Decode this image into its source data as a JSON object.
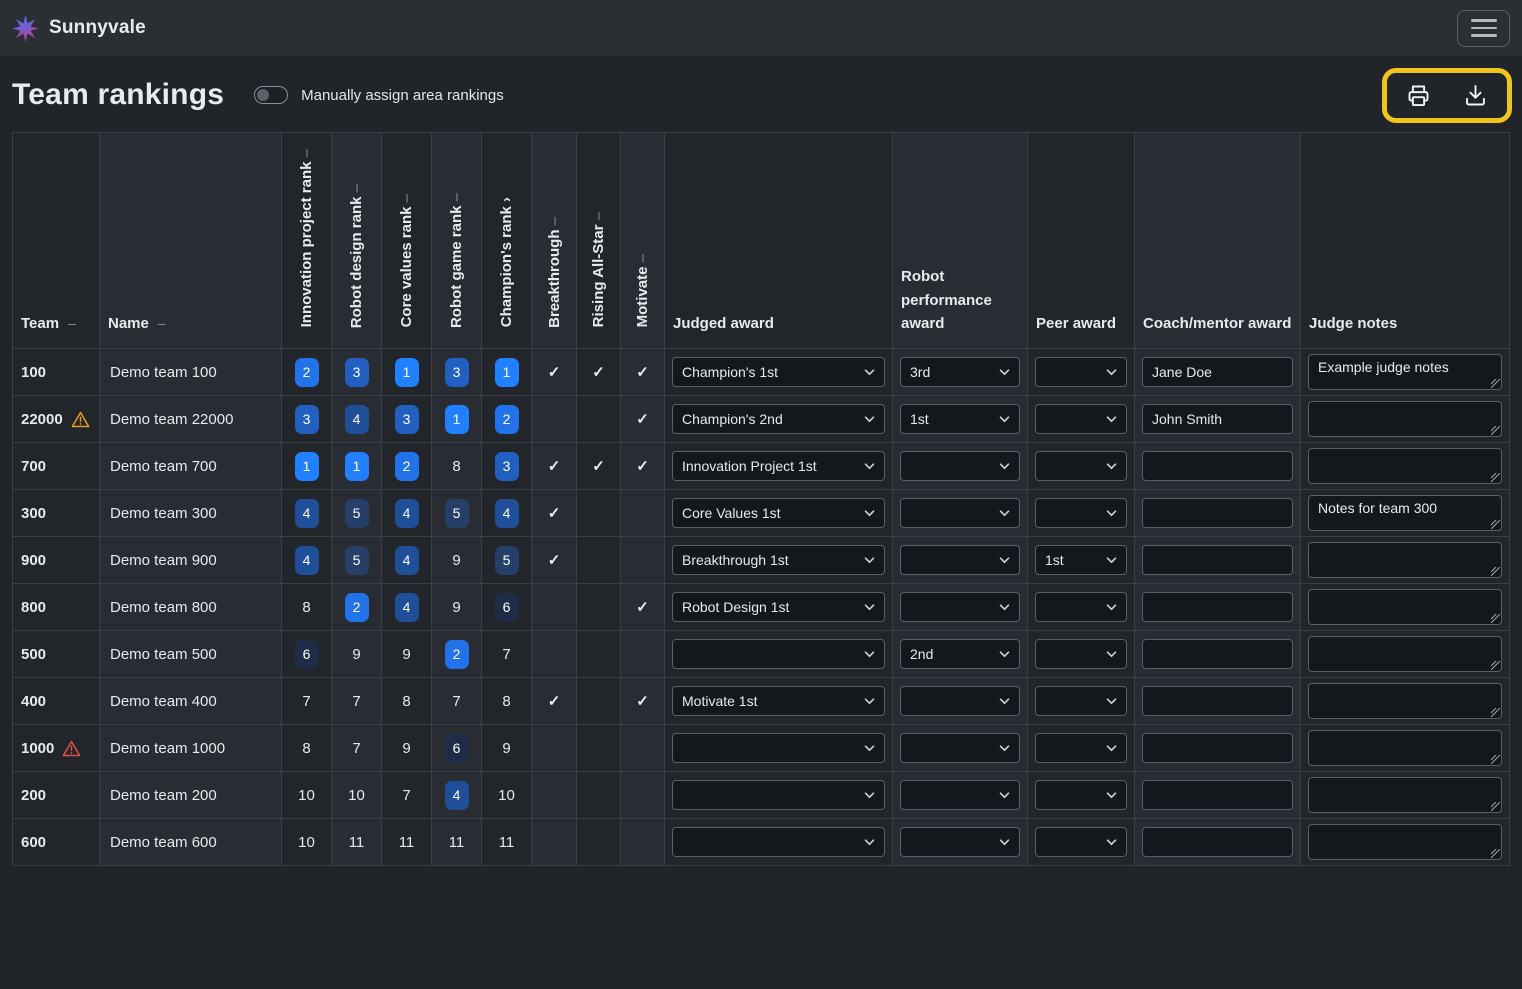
{
  "app": {
    "brand": "Sunnyvale"
  },
  "page": {
    "title": "Team rankings",
    "toggle_label": "Manually assign area rankings",
    "toggle_on": false
  },
  "toolbar": {
    "print_icon": "printer-icon",
    "download_icon": "download-icon",
    "menu_icon": "hamburger-icon",
    "logo_icon": "starburst-icon"
  },
  "icons": {
    "check": "✓",
    "sort_unsorted": "–",
    "sort_asc": "›",
    "select_caret": "chevron-down-icon",
    "warning": "warning-triangle-icon"
  },
  "colors": {
    "highlight": "#f0c419",
    "warning_amber": "#e9a11b",
    "warning_red": "#e05252",
    "rank_badge": {
      "1": "#2080ff",
      "2": "#2273e9",
      "3": "#2160c0",
      "4": "#204f9a",
      "5": "#263f69",
      "6": "#1e2c47"
    }
  },
  "table": {
    "columns": [
      {
        "id": "team",
        "label": "Team",
        "sort": "unsorted",
        "orientation": "horizontal"
      },
      {
        "id": "name",
        "label": "Name",
        "sort": "unsorted",
        "orientation": "horizontal"
      },
      {
        "id": "innovation_project_rank",
        "label": "Innovation project rank",
        "sort": "unsorted",
        "orientation": "vertical"
      },
      {
        "id": "robot_design_rank",
        "label": "Robot design rank",
        "sort": "unsorted",
        "orientation": "vertical"
      },
      {
        "id": "core_values_rank",
        "label": "Core values rank",
        "sort": "unsorted",
        "orientation": "vertical"
      },
      {
        "id": "robot_game_rank",
        "label": "Robot game rank",
        "sort": "unsorted",
        "orientation": "vertical"
      },
      {
        "id": "champions_rank",
        "label": "Champion's rank",
        "sort": "asc",
        "orientation": "vertical"
      },
      {
        "id": "breakthrough",
        "label": "Breakthrough",
        "sort": "unsorted",
        "orientation": "vertical"
      },
      {
        "id": "rising_all_star",
        "label": "Rising All-Star",
        "sort": "unsorted",
        "orientation": "vertical"
      },
      {
        "id": "motivate",
        "label": "Motivate",
        "sort": "unsorted",
        "orientation": "vertical"
      },
      {
        "id": "judged_award",
        "label": "Judged award",
        "sort": "none",
        "orientation": "horizontal"
      },
      {
        "id": "robot_performance_award",
        "label": "Robot performance award",
        "sort": "none",
        "orientation": "horizontal"
      },
      {
        "id": "peer_award",
        "label": "Peer award",
        "sort": "none",
        "orientation": "horizontal"
      },
      {
        "id": "coach_mentor_award",
        "label": "Coach/mentor award",
        "sort": "none",
        "orientation": "horizontal"
      },
      {
        "id": "judge_notes",
        "label": "Judge notes",
        "sort": "none",
        "orientation": "horizontal"
      }
    ],
    "rows": [
      {
        "team": "100",
        "warning": null,
        "name": "Demo team 100",
        "ranks": [
          2,
          3,
          1,
          3,
          1
        ],
        "breakthrough": true,
        "rising_all_star": true,
        "motivate": true,
        "judged_award": "Champion's 1st",
        "robot_performance_award": "3rd",
        "peer_award": "",
        "coach_mentor_award": "Jane Doe",
        "judge_notes": "Example judge notes"
      },
      {
        "team": "22000",
        "warning": "amber",
        "name": "Demo team 22000",
        "ranks": [
          3,
          4,
          3,
          1,
          2
        ],
        "breakthrough": false,
        "rising_all_star": false,
        "motivate": true,
        "judged_award": "Champion's 2nd",
        "robot_performance_award": "1st",
        "peer_award": "",
        "coach_mentor_award": "John Smith",
        "judge_notes": ""
      },
      {
        "team": "700",
        "warning": null,
        "name": "Demo team 700",
        "ranks": [
          1,
          1,
          2,
          8,
          3
        ],
        "breakthrough": true,
        "rising_all_star": true,
        "motivate": true,
        "judged_award": "Innovation Project 1st",
        "robot_performance_award": "",
        "peer_award": "",
        "coach_mentor_award": "",
        "judge_notes": ""
      },
      {
        "team": "300",
        "warning": null,
        "name": "Demo team 300",
        "ranks": [
          4,
          5,
          4,
          5,
          4
        ],
        "breakthrough": true,
        "rising_all_star": false,
        "motivate": false,
        "judged_award": "Core Values 1st",
        "robot_performance_award": "",
        "peer_award": "",
        "coach_mentor_award": "",
        "judge_notes": "Notes for team 300"
      },
      {
        "team": "900",
        "warning": null,
        "name": "Demo team 900",
        "ranks": [
          4,
          5,
          4,
          9,
          5
        ],
        "breakthrough": true,
        "rising_all_star": false,
        "motivate": false,
        "judged_award": "Breakthrough 1st",
        "robot_performance_award": "",
        "peer_award": "1st",
        "coach_mentor_award": "",
        "judge_notes": ""
      },
      {
        "team": "800",
        "warning": null,
        "name": "Demo team 800",
        "ranks": [
          8,
          2,
          4,
          9,
          6
        ],
        "breakthrough": false,
        "rising_all_star": false,
        "motivate": true,
        "judged_award": "Robot Design 1st",
        "robot_performance_award": "",
        "peer_award": "",
        "coach_mentor_award": "",
        "judge_notes": ""
      },
      {
        "team": "500",
        "warning": null,
        "name": "Demo team 500",
        "ranks": [
          6,
          9,
          9,
          2,
          7
        ],
        "breakthrough": false,
        "rising_all_star": false,
        "motivate": false,
        "judged_award": "",
        "robot_performance_award": "2nd",
        "peer_award": "",
        "coach_mentor_award": "",
        "judge_notes": ""
      },
      {
        "team": "400",
        "warning": null,
        "name": "Demo team 400",
        "ranks": [
          7,
          7,
          8,
          7,
          8
        ],
        "breakthrough": true,
        "rising_all_star": false,
        "motivate": true,
        "judged_award": "Motivate 1st",
        "robot_performance_award": "",
        "peer_award": "",
        "coach_mentor_award": "",
        "judge_notes": ""
      },
      {
        "team": "1000",
        "warning": "red",
        "name": "Demo team 1000",
        "ranks": [
          8,
          7,
          9,
          6,
          9
        ],
        "breakthrough": false,
        "rising_all_star": false,
        "motivate": false,
        "judged_award": "",
        "robot_performance_award": "",
        "peer_award": "",
        "coach_mentor_award": "",
        "judge_notes": ""
      },
      {
        "team": "200",
        "warning": null,
        "name": "Demo team 200",
        "ranks": [
          10,
          10,
          7,
          4,
          10
        ],
        "breakthrough": false,
        "rising_all_star": false,
        "motivate": false,
        "judged_award": "",
        "robot_performance_award": "",
        "peer_award": "",
        "coach_mentor_award": "",
        "judge_notes": ""
      },
      {
        "team": "600",
        "warning": null,
        "name": "Demo team 600",
        "ranks": [
          10,
          11,
          11,
          11,
          11
        ],
        "breakthrough": false,
        "rising_all_star": false,
        "motivate": false,
        "judged_award": "",
        "robot_performance_award": "",
        "peer_award": "",
        "coach_mentor_award": "",
        "judge_notes": ""
      }
    ]
  }
}
